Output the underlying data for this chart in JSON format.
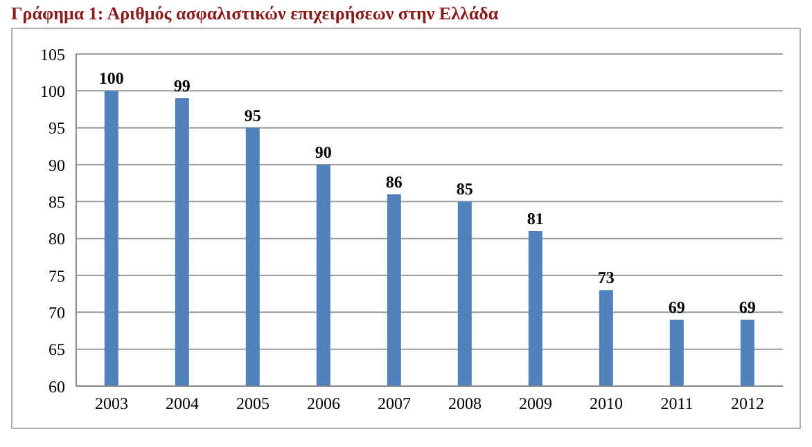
{
  "chart_data": {
    "type": "bar",
    "title": "Γράφημα 1: Αριθμός ασφαλιστικών επιχειρήσεων στην Ελλάδα",
    "categories": [
      "2003",
      "2004",
      "2005",
      "2006",
      "2007",
      "2008",
      "2009",
      "2010",
      "2011",
      "2012"
    ],
    "values": [
      100,
      99,
      95,
      90,
      86,
      85,
      81,
      73,
      69,
      69
    ],
    "color": "#4f81bd",
    "ylim": [
      60,
      105
    ],
    "yticks": [
      60,
      65,
      70,
      75,
      80,
      85,
      90,
      95,
      100,
      105
    ],
    "grid": "y",
    "data_labels": true
  }
}
